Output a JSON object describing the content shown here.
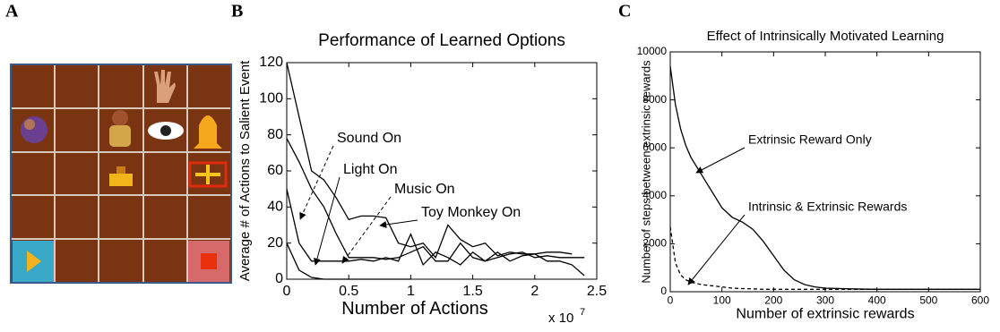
{
  "panel_a": {
    "label": "A"
  },
  "chart_data": [
    {
      "type": "line",
      "panel_label": "B",
      "title": "Performance of Learned Options",
      "x_label": "Number of Actions",
      "y_label": "Average # of Actions to Salient Event",
      "x_multiplier": "x 10",
      "x_multiplier_exp": "7",
      "x": [
        0,
        0.1,
        0.2,
        0.3,
        0.4,
        0.5,
        0.6,
        0.7,
        0.8,
        0.9,
        1.0,
        1.1,
        1.2,
        1.3,
        1.4,
        1.5,
        1.6,
        1.7,
        1.8,
        1.9,
        2.0,
        2.1,
        2.2,
        2.3,
        2.4
      ],
      "xlim": [
        0,
        2.5
      ],
      "xticks": [
        0,
        0.5,
        1,
        1.5,
        2,
        2.5
      ],
      "ylim": [
        0,
        120
      ],
      "yticks": [
        0,
        20,
        40,
        60,
        80,
        100,
        120
      ],
      "series": [
        {
          "name": "Sound On",
          "color": "#000000",
          "values": [
            120,
            90,
            60,
            55,
            45,
            33,
            35,
            35,
            34,
            20,
            18,
            20,
            12,
            30,
            22,
            18,
            20,
            13,
            15,
            14,
            14,
            15,
            15,
            14,
            null
          ]
        },
        {
          "name": "Light On",
          "color": "#000000",
          "values": [
            78,
            65,
            50,
            40,
            25,
            12,
            12,
            12,
            11,
            12,
            15,
            18,
            10,
            10,
            20,
            12,
            10,
            12,
            14,
            15,
            12,
            13,
            12,
            12,
            12
          ]
        },
        {
          "name": "Music On",
          "color": "#000000",
          "values": [
            50,
            20,
            10,
            10,
            10,
            10,
            11,
            10,
            12,
            10,
            25,
            8,
            15,
            12,
            8,
            15,
            10,
            15,
            10,
            13,
            14,
            10,
            10,
            8,
            2
          ]
        },
        {
          "name": "Toy Monkey On",
          "color": "#000000",
          "values": [
            20,
            5,
            1,
            0,
            0,
            0,
            0,
            0,
            0,
            0,
            0,
            null,
            null,
            null,
            null,
            null,
            null,
            null,
            null,
            null,
            null,
            null,
            null,
            null,
            null
          ]
        }
      ]
    },
    {
      "type": "line",
      "panel_label": "C",
      "title": "Effect of Intrinsically Motivated Learning",
      "x_label": "Number of extrinsic rewards",
      "y_label": "Number of steps between extrinsic rewards",
      "x": [
        0,
        10,
        20,
        30,
        40,
        60,
        80,
        100,
        120,
        140,
        160,
        180,
        200,
        220,
        240,
        260,
        280,
        300,
        350,
        400,
        500,
        600
      ],
      "xlim": [
        0,
        600
      ],
      "xticks": [
        0,
        100,
        200,
        300,
        400,
        500,
        600
      ],
      "ylim": [
        0,
        10000
      ],
      "yticks": [
        0,
        2000,
        4000,
        6000,
        8000,
        10000
      ],
      "series": [
        {
          "name": "Extrinsic Reward Only",
          "color": "#000000",
          "dash": false,
          "values": [
            9400,
            7800,
            6800,
            6100,
            5600,
            4900,
            4200,
            3500,
            3100,
            2900,
            2600,
            2100,
            1500,
            900,
            500,
            300,
            200,
            150,
            120,
            100,
            100,
            100
          ]
        },
        {
          "name": "Intrinsic & Extrinsic Rewards",
          "color": "#000000",
          "dash": true,
          "values": [
            2700,
            1200,
            700,
            500,
            400,
            300,
            250,
            200,
            150,
            130,
            120,
            100,
            100,
            100,
            100,
            100,
            100,
            100,
            100,
            100,
            100,
            100
          ]
        }
      ]
    }
  ]
}
